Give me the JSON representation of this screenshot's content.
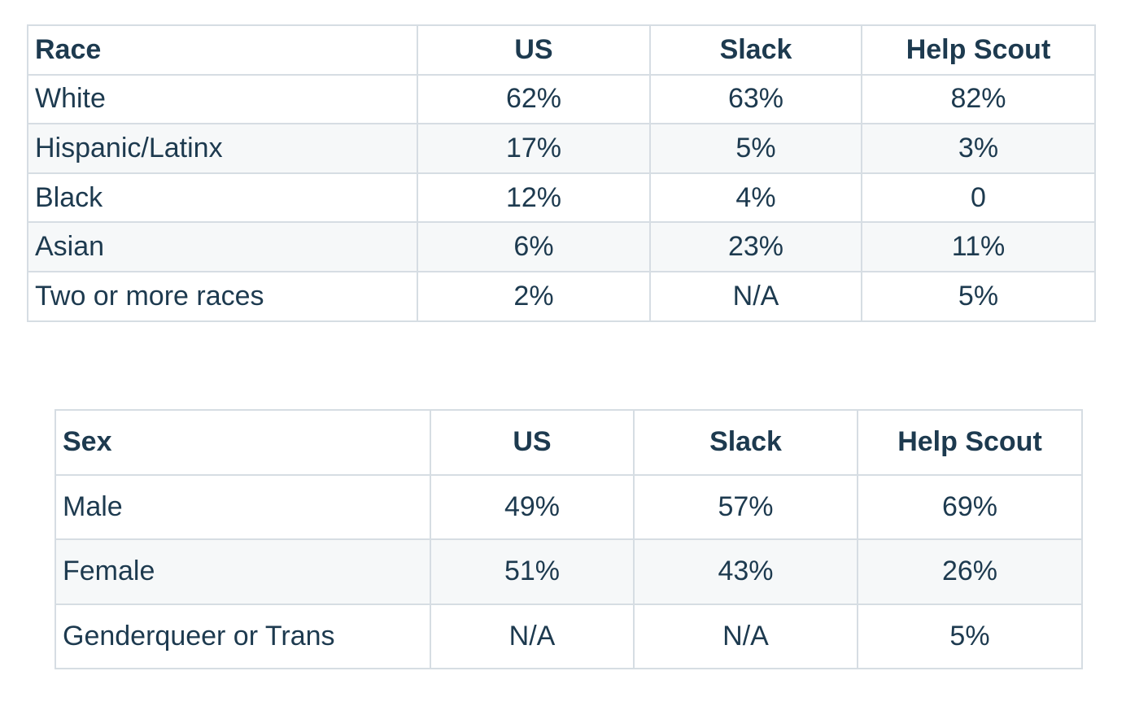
{
  "race_table": {
    "headers": [
      "Race",
      "US",
      "Slack",
      "Help Scout"
    ],
    "rows": [
      [
        "White",
        "62%",
        "63%",
        "82%"
      ],
      [
        "Hispanic/Latinx",
        "17%",
        "5%",
        "3%"
      ],
      [
        "Black",
        "12%",
        "4%",
        "0"
      ],
      [
        "Asian",
        "6%",
        "23%",
        "11%"
      ],
      [
        "Two or more races",
        "2%",
        "N/A",
        "5%"
      ]
    ]
  },
  "sex_table": {
    "headers": [
      "Sex",
      "US",
      "Slack",
      "Help Scout"
    ],
    "rows": [
      [
        "Male",
        "49%",
        "57%",
        "69%"
      ],
      [
        "Female",
        "51%",
        "43%",
        "26%"
      ],
      [
        "Genderqueer or Trans",
        "N/A",
        "N/A",
        "5%"
      ]
    ]
  },
  "colors": {
    "text": "#1d3a4f",
    "border": "#d6dde3",
    "row_shade": "#f6f8f9"
  }
}
